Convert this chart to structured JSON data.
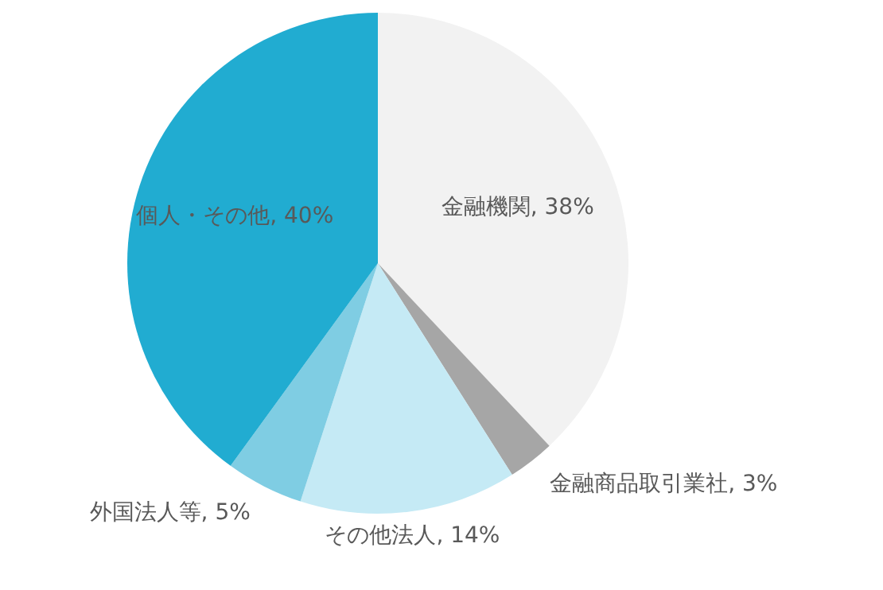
{
  "chart_data": {
    "type": "pie",
    "categories": [
      "金融機関",
      "金融商品取引業社",
      "その他法人",
      "外国法人等",
      "個人・その他"
    ],
    "values": [
      38,
      3,
      14,
      5,
      40
    ],
    "value_labels": [
      "38%",
      "3%",
      "14%",
      "5%",
      "40%"
    ],
    "colors": [
      "#f2f2f2",
      "#a6a6a6",
      "#c5eaf5",
      "#7fcde3",
      "#21acd1"
    ],
    "legend": false
  }
}
